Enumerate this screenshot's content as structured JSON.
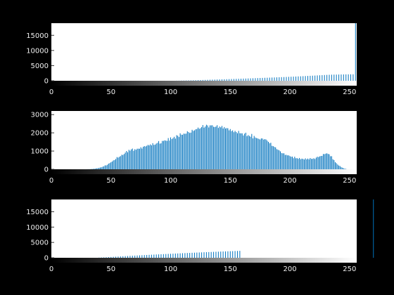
{
  "figure": {
    "background": "#000000",
    "axes_background": "#ffffff",
    "bar_color": "#0072bd",
    "tick_color": "#f0f0f0"
  },
  "chart_data": [
    {
      "type": "bar",
      "title": "",
      "xlabel": "",
      "ylabel": "",
      "xlim": [
        0,
        256
      ],
      "ylim": [
        0,
        19000
      ],
      "xticks": [
        0,
        50,
        100,
        150,
        200,
        250
      ],
      "yticks": [
        0,
        5000,
        10000,
        15000
      ],
      "grid": false,
      "colorbar": "grayscale",
      "x_start": 0,
      "values": [
        0,
        0,
        0,
        0,
        0,
        0,
        0,
        0,
        0,
        0,
        0,
        0,
        0,
        0,
        0,
        0,
        0,
        0,
        0,
        0,
        0,
        0,
        0,
        0,
        0,
        0,
        0,
        0,
        0,
        0,
        0,
        0,
        0,
        0,
        0,
        0,
        0,
        0,
        0,
        0,
        0,
        0,
        0,
        0,
        0,
        0,
        0,
        0,
        0,
        0,
        0,
        0,
        0,
        0,
        0,
        0,
        0,
        0,
        0,
        0,
        0,
        0,
        0,
        0,
        0,
        0,
        0,
        0,
        0,
        0,
        0,
        0,
        0,
        0,
        0,
        0,
        0,
        0,
        0,
        0,
        0,
        0,
        0,
        0,
        0,
        0,
        0,
        0,
        0,
        0,
        0,
        0,
        0,
        0,
        0,
        0,
        0,
        0,
        0,
        0,
        0,
        0,
        0,
        0,
        0,
        30,
        0,
        40,
        0,
        60,
        0,
        80,
        0,
        100,
        0,
        120,
        0,
        140,
        0,
        170,
        0,
        190,
        0,
        220,
        0,
        240,
        0,
        270,
        0,
        290,
        0,
        320,
        0,
        340,
        0,
        370,
        0,
        390,
        0,
        420,
        0,
        440,
        0,
        470,
        0,
        500,
        0,
        520,
        0,
        550,
        0,
        580,
        0,
        600,
        0,
        630,
        0,
        660,
        0,
        690,
        0,
        720,
        0,
        740,
        0,
        770,
        0,
        800,
        0,
        830,
        0,
        860,
        0,
        890,
        0,
        920,
        0,
        950,
        0,
        980,
        0,
        1000,
        0,
        1040,
        0,
        1070,
        0,
        1100,
        0,
        1130,
        0,
        1160,
        0,
        1200,
        0,
        1230,
        0,
        1260,
        0,
        1300,
        0,
        1330,
        0,
        1370,
        0,
        1400,
        0,
        1440,
        0,
        1480,
        0,
        1520,
        0,
        1560,
        0,
        1600,
        0,
        1640,
        0,
        1680,
        0,
        1720,
        0,
        1770,
        0,
        1810,
        0,
        1850,
        0,
        1900,
        0,
        1940,
        0,
        1980,
        0,
        2010,
        0,
        2030,
        0,
        2040,
        0,
        2060,
        0,
        2080,
        0,
        2100,
        0,
        2110,
        0,
        2120,
        0,
        2130,
        0,
        2140,
        0,
        19000
      ]
    },
    {
      "type": "bar",
      "title": "",
      "xlabel": "",
      "ylabel": "",
      "xlim": [
        0,
        256
      ],
      "ylim": [
        0,
        3200
      ],
      "xticks": [
        0,
        50,
        100,
        150,
        200,
        250
      ],
      "yticks": [
        0,
        1000,
        2000,
        3000
      ],
      "grid": false,
      "colorbar": "grayscale",
      "x_start": 0,
      "values": [
        0,
        0,
        0,
        0,
        0,
        0,
        0,
        0,
        0,
        0,
        0,
        0,
        0,
        0,
        0,
        0,
        0,
        0,
        0,
        0,
        0,
        0,
        0,
        0,
        0,
        0,
        0,
        0,
        0,
        0,
        3,
        5,
        7,
        12,
        15,
        23,
        28,
        40,
        52,
        60,
        79,
        97,
        109,
        140,
        162,
        215,
        211,
        249,
        310,
        340,
        391,
        429,
        487,
        508,
        564,
        669,
        640,
        684,
        720,
        797,
        784,
        839,
        916,
        1002,
        934,
        1069,
        1018,
        1094,
        1136,
        1012,
        1101,
        1072,
        1128,
        1130,
        1126,
        1209,
        1138,
        1236,
        1270,
        1249,
        1290,
        1338,
        1308,
        1366,
        1316,
        1432,
        1340,
        1357,
        1412,
        1452,
        1549,
        1407,
        1427,
        1556,
        1558,
        1589,
        1571,
        1559,
        1713,
        1575,
        1750,
        1656,
        1714,
        1783,
        1685,
        1871,
        1839,
        1771,
        1974,
        1898,
        1894,
        1958,
        1947,
        1958,
        2089,
        2041,
        1995,
        2013,
        2166,
        2104,
        2138,
        2193,
        2210,
        2289,
        2221,
        2254,
        2319,
        2427,
        2283,
        2347,
        2443,
        2406,
        2296,
        2410,
        2411,
        2415,
        2331,
        2318,
        2347,
        2419,
        2269,
        2347,
        2302,
        2379,
        2240,
        2317,
        2238,
        2261,
        2251,
        2135,
        2208,
        2095,
        2136,
        2035,
        2109,
        2045,
        1978,
        2106,
        1979,
        1974,
        1973,
        1857,
        1955,
        2008,
        1818,
        1875,
        1829,
        1788,
        1940,
        1697,
        1831,
        1743,
        1713,
        1695,
        1666,
        1634,
        1695,
        1689,
        1628,
        1655,
        1633,
        1570,
        1506,
        1426,
        1454,
        1286,
        1270,
        1226,
        1204,
        1104,
        1072,
        1038,
        983,
        888,
        876,
        877,
        788,
        792,
        764,
        764,
        723,
        689,
        696,
        606,
        691,
        603,
        613,
        571,
        621,
        550,
        585,
        568,
        535,
        600,
        542,
        588,
        542,
        616,
        569,
        573,
        603,
        563,
        639,
        689,
        670,
        709,
        730,
        735,
        838,
        831,
        857,
        876,
        843,
        824,
        716,
        717,
        552,
        503,
        388,
        332,
        260,
        206,
        178,
        115,
        87,
        56,
        31,
        18,
        0,
        0,
        0,
        0,
        0,
        0,
        0,
        0,
        0,
        0,
        0,
        0,
        0,
        0,
        0,
        0
      ]
    },
    {
      "type": "bar",
      "title": "",
      "xlabel": "",
      "ylabel": "",
      "xlim": [
        0,
        256
      ],
      "ylim": [
        0,
        19000
      ],
      "xticks": [
        0,
        50,
        100,
        150,
        200,
        250
      ],
      "yticks": [
        0,
        5000,
        10000,
        15000
      ],
      "grid": false,
      "colorbar": "grayscale",
      "x_start": 0,
      "values": [
        0,
        0,
        0,
        0,
        0,
        0,
        0,
        0,
        0,
        0,
        0,
        0,
        0,
        0,
        0,
        0,
        0,
        0,
        0,
        0,
        0,
        0,
        0,
        0,
        0,
        0,
        0,
        0,
        0,
        0,
        0,
        0,
        0,
        0,
        0,
        0,
        0,
        0,
        0,
        0,
        60,
        0,
        100,
        0,
        140,
        0,
        180,
        0,
        230,
        0,
        270,
        0,
        320,
        0,
        360,
        0,
        410,
        0,
        450,
        0,
        500,
        0,
        540,
        0,
        580,
        0,
        630,
        0,
        670,
        0,
        710,
        0,
        750,
        0,
        790,
        0,
        840,
        0,
        880,
        0,
        920,
        0,
        960,
        0,
        1000,
        0,
        1040,
        0,
        1080,
        0,
        1110,
        0,
        1150,
        0,
        1190,
        0,
        1230,
        0,
        1270,
        0,
        1300,
        0,
        1340,
        0,
        1380,
        0,
        1410,
        0,
        1450,
        0,
        1490,
        0,
        1520,
        0,
        1560,
        0,
        1590,
        0,
        1630,
        0,
        1660,
        0,
        1700,
        0,
        1730,
        0,
        1760,
        0,
        1800,
        0,
        1830,
        0,
        1860,
        0,
        1890,
        0,
        1930,
        0,
        1960,
        0,
        1990,
        0,
        2020,
        0,
        2050,
        0,
        2080,
        0,
        2110,
        0,
        2140,
        0,
        2170,
        0,
        2200,
        0,
        2230,
        0,
        2260,
        0,
        0,
        0,
        0,
        0,
        0,
        0,
        0,
        0,
        0,
        0,
        0,
        0,
        0,
        0,
        0,
        0,
        0,
        0,
        0,
        0,
        0,
        0,
        0,
        0,
        0,
        0,
        0,
        0,
        0,
        0,
        0,
        0,
        0,
        0,
        0,
        0,
        0,
        0,
        0,
        0,
        0,
        0,
        0,
        0,
        0,
        0,
        0,
        0,
        0,
        0,
        0,
        0,
        0,
        0,
        0,
        0,
        0,
        0,
        0,
        0,
        0,
        0,
        0,
        0,
        0,
        0,
        0,
        0,
        0,
        0,
        0,
        0,
        0,
        0,
        0,
        0,
        0,
        0,
        0,
        0,
        0,
        0,
        0,
        0,
        0,
        0,
        0,
        0,
        0,
        0,
        0,
        0,
        0,
        0,
        0,
        0,
        0,
        0,
        0,
        0,
        0,
        0,
        0,
        0,
        0,
        0,
        0,
        0,
        0,
        0,
        19000,
        0,
        0,
        0,
        0,
        0,
        0,
        0,
        0,
        0,
        0,
        0,
        0
      ]
    }
  ]
}
